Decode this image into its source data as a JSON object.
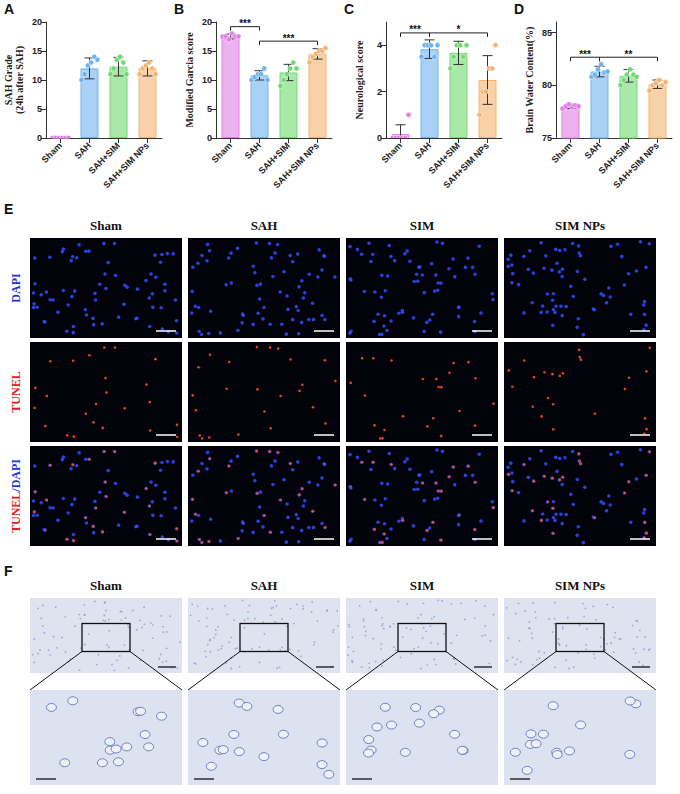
{
  "chart_data": [
    {
      "panel": "A",
      "type": "bar",
      "y_label": "SAH Grade (24h after SAH)",
      "categories": [
        "Sham",
        "SAH",
        "SAH+SIM",
        "SAH+SIM NPs"
      ],
      "values": [
        0,
        12,
        12.3,
        12
      ],
      "errors": [
        0,
        1.8,
        1.6,
        1.3
      ],
      "points": [
        [
          0,
          0,
          0,
          0,
          0,
          0
        ],
        [
          10,
          11,
          12.5,
          13,
          14,
          13.5
        ],
        [
          11,
          12,
          13.5,
          14,
          13,
          11
        ],
        [
          11,
          12,
          12.5,
          13,
          12,
          11
        ]
      ],
      "colors": [
        "#e07fe6",
        "#6fb3ee",
        "#72d872",
        "#f5b36f"
      ],
      "ylim": [
        0,
        20
      ],
      "yticks": [
        0,
        5,
        10,
        15,
        20
      ]
    },
    {
      "panel": "B",
      "type": "bar",
      "y_label": "Modified Garcia score",
      "categories": [
        "Sham",
        "SAH",
        "SAH+SIM",
        "SAH+SIM NPs"
      ],
      "values": [
        17.5,
        10.8,
        11.3,
        14.5
      ],
      "errors": [
        0.4,
        0.8,
        1.4,
        0.9
      ],
      "points": [
        [
          17.5,
          17.5,
          17,
          18,
          17.5,
          17.5
        ],
        [
          10,
          10.5,
          11,
          11,
          12,
          10
        ],
        [
          9,
          10,
          11,
          12,
          13,
          12
        ],
        [
          13,
          14,
          14.5,
          15,
          15,
          15.5
        ]
      ],
      "colors": [
        "#e07fe6",
        "#6fb3ee",
        "#72d872",
        "#f5b36f"
      ],
      "ylim": [
        0,
        20
      ],
      "yticks": [
        0,
        5,
        10,
        15,
        20
      ],
      "comparisons": [
        {
          "from": 0,
          "to": 1,
          "label": "***"
        },
        {
          "from": 1,
          "to": 3,
          "label": "***"
        }
      ]
    },
    {
      "panel": "C",
      "type": "bar",
      "y_label": "Neurological score",
      "categories": [
        "Sham",
        "SAH",
        "SAH+SIM",
        "SAH+SIM NPs"
      ],
      "values": [
        0.17,
        3.83,
        3.67,
        2.5
      ],
      "errors": [
        0.4,
        0.4,
        0.5,
        1.05
      ],
      "points": [
        [
          0,
          0,
          0,
          0,
          0,
          1
        ],
        [
          3.5,
          4,
          4,
          4,
          3.5,
          4
        ],
        [
          3,
          3.5,
          4,
          4,
          3.5,
          4
        ],
        [
          1,
          2,
          2,
          3,
          3,
          4
        ]
      ],
      "colors": [
        "#e07fe6",
        "#6fb3ee",
        "#72d872",
        "#f5b36f"
      ],
      "ylim": [
        0,
        5
      ],
      "yticks": [
        0,
        2,
        4
      ],
      "comparisons": [
        {
          "from": 0,
          "to": 1,
          "label": "***"
        },
        {
          "from": 1,
          "to": 3,
          "label": "*"
        }
      ]
    },
    {
      "panel": "D",
      "type": "bar",
      "y_label": "Brain Water Content(%)",
      "categories": [
        "Sham",
        "SAH",
        "SAH+SIM",
        "SAH+SIM NPs"
      ],
      "values": [
        78,
        81.3,
        80.9,
        80.1
      ],
      "errors": [
        0.2,
        0.5,
        0.6,
        0.4
      ],
      "points": [
        [
          77.8,
          78,
          78.2,
          77.9,
          78.1,
          78
        ],
        [
          80.8,
          81,
          81.5,
          82,
          81.2,
          81.3
        ],
        [
          80,
          80.5,
          81,
          81.5,
          81,
          80.8
        ],
        [
          79.5,
          80,
          80.2,
          80.5,
          80,
          80.3
        ]
      ],
      "colors": [
        "#e07fe6",
        "#6fb3ee",
        "#72d872",
        "#f5b36f"
      ],
      "ylim": [
        75,
        86
      ],
      "yticks": [
        75,
        80,
        85
      ],
      "comparisons": [
        {
          "from": 0,
          "to": 1,
          "label": "***"
        },
        {
          "from": 1,
          "to": 3,
          "label": "**"
        }
      ]
    }
  ],
  "image_panels": [
    {
      "panel": "E",
      "columns": [
        "Sham",
        "SAH",
        "SIM",
        "SIM NPs"
      ],
      "rows": [
        "DAPI",
        "TUNEL",
        "TUNEL/DAPI"
      ]
    },
    {
      "panel": "F",
      "columns": [
        "Sham",
        "SAH",
        "SIM",
        "SIM NPs"
      ]
    }
  ]
}
